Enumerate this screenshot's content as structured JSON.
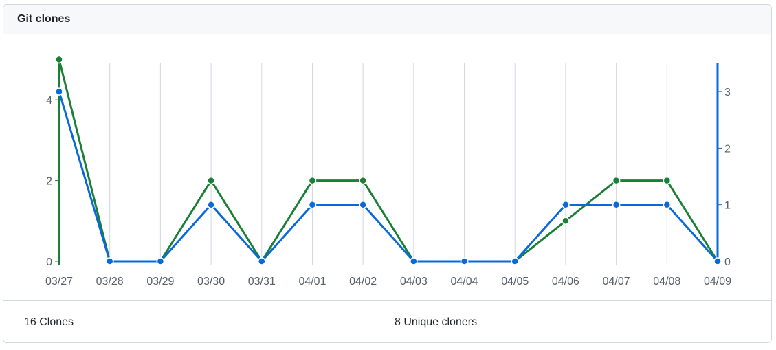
{
  "header": {
    "title": "Git clones"
  },
  "footer": {
    "clones_label": "16 Clones",
    "unique_label": "8 Unique cloners"
  },
  "chart_data": {
    "type": "line",
    "title": "Git clones",
    "categories": [
      "03/27",
      "03/28",
      "03/29",
      "03/30",
      "03/31",
      "04/01",
      "04/02",
      "04/03",
      "04/04",
      "04/05",
      "04/06",
      "04/07",
      "04/08",
      "04/09"
    ],
    "series": [
      {
        "axis": "left",
        "color": "#1a7f37",
        "values": [
          5,
          0,
          0,
          2,
          0,
          2,
          2,
          0,
          0,
          0,
          1,
          2,
          2,
          0
        ]
      },
      {
        "axis": "right",
        "color": "#0969da",
        "values": [
          3,
          0,
          0,
          1,
          0,
          1,
          1,
          0,
          0,
          0,
          1,
          1,
          1,
          0
        ]
      }
    ],
    "y_left": {
      "ylim": [
        0,
        5
      ],
      "ticks": [
        0,
        2,
        4
      ],
      "color": "#1a7f37"
    },
    "y_right": {
      "ylim": [
        0,
        3.5
      ],
      "ticks": [
        0,
        1,
        2,
        3
      ],
      "color": "#0969da"
    },
    "grid": "vertical",
    "legend": "none"
  }
}
